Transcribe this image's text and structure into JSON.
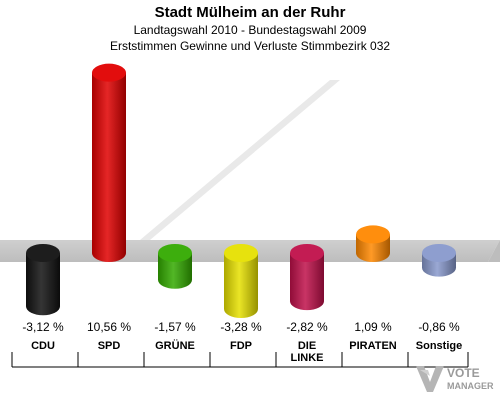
{
  "header": {
    "title": "Stadt Mülheim an der Ruhr",
    "subtitle1": "Landtagswahl 2010 - Bundestagswahl 2009",
    "subtitle2": "Erststimmen Gewinne und Verluste Stimmbezirk 032"
  },
  "chart_data": {
    "type": "bar",
    "title": "Stadt Mülheim an der Ruhr",
    "xlabel": "",
    "ylabel": "",
    "categories": [
      "CDU",
      "SPD",
      "GRÜNE",
      "FDP",
      "DIE LINKE",
      "PIRATEN",
      "Sonstige"
    ],
    "category_lines": [
      [
        "CDU"
      ],
      [
        "SPD"
      ],
      [
        "GRÜNE"
      ],
      [
        "FDP"
      ],
      [
        "DIE",
        "LINKE"
      ],
      [
        "PIRATEN"
      ],
      [
        "Sonstige"
      ]
    ],
    "values": [
      -3.12,
      10.56,
      -1.57,
      -3.28,
      -2.82,
      1.09,
      -0.86
    ],
    "value_labels": [
      "-3,12 %",
      "10,56 %",
      "-1,57 %",
      "-3,28 %",
      "-2,82 %",
      "1,09 %",
      "-0,86 %"
    ],
    "colors": [
      "#111111",
      "#e00000",
      "#33aa00",
      "#e6e000",
      "#c0104a",
      "#ff8800",
      "#8899cc"
    ],
    "ylim": [
      -3.3,
      10.6
    ],
    "grid": false
  },
  "watermark": {
    "text": "VOTE",
    "subtext": "MANAGER"
  }
}
